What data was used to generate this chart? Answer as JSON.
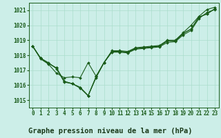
{
  "title": "Graphe pression niveau de la mer (hPa)",
  "bg_color": "#cceee8",
  "grid_color": "#aaddcc",
  "line_color": "#1a5c1a",
  "label_bg": "#44aa77",
  "xlim": [
    -0.5,
    23.5
  ],
  "ylim": [
    1014.5,
    1021.5
  ],
  "yticks": [
    1015,
    1016,
    1017,
    1018,
    1019,
    1020,
    1021
  ],
  "xticks": [
    0,
    1,
    2,
    3,
    4,
    5,
    6,
    7,
    8,
    9,
    10,
    11,
    12,
    13,
    14,
    15,
    16,
    17,
    18,
    19,
    20,
    21,
    22,
    23
  ],
  "series": [
    [
      1018.6,
      1017.8,
      1017.5,
      1017.1,
      1016.2,
      1016.1,
      1015.8,
      1015.3,
      1016.5,
      1017.5,
      1018.3,
      1018.3,
      1018.25,
      1018.5,
      1018.55,
      1018.6,
      1018.65,
      1019.0,
      1019.0,
      1019.5,
      1020.0,
      1020.6,
      1021.05,
      1021.2
    ],
    [
      1018.6,
      1017.8,
      1017.45,
      1017.15,
      1016.25,
      1016.1,
      1015.85,
      1015.3,
      1016.55,
      1017.5,
      1018.25,
      1018.25,
      1018.2,
      1018.45,
      1018.5,
      1018.55,
      1018.6,
      1018.95,
      1018.95,
      1019.45,
      1019.75,
      1020.55,
      1020.75,
      1021.1
    ],
    [
      1018.6,
      1017.8,
      1017.45,
      1017.15,
      1016.25,
      1016.1,
      1015.85,
      1015.3,
      1016.55,
      1017.5,
      1018.25,
      1018.25,
      1018.2,
      1018.45,
      1018.5,
      1018.55,
      1018.6,
      1018.95,
      1018.95,
      1019.45,
      1019.75,
      1020.55,
      1020.75,
      1021.1
    ],
    [
      1018.6,
      1017.75,
      1017.4,
      1016.8,
      1016.5,
      1016.55,
      1016.5,
      1017.5,
      1016.6,
      1017.5,
      1018.2,
      1018.2,
      1018.15,
      1018.4,
      1018.45,
      1018.5,
      1018.55,
      1018.85,
      1018.9,
      1019.35,
      1019.65,
      1020.45,
      1020.85,
      1021.05
    ]
  ],
  "marker": "D",
  "marker_size": 2.0,
  "linewidth": 0.8,
  "title_fontsize": 7.5,
  "tick_fontsize": 5.5,
  "figsize": [
    3.2,
    2.0
  ],
  "dpi": 100
}
